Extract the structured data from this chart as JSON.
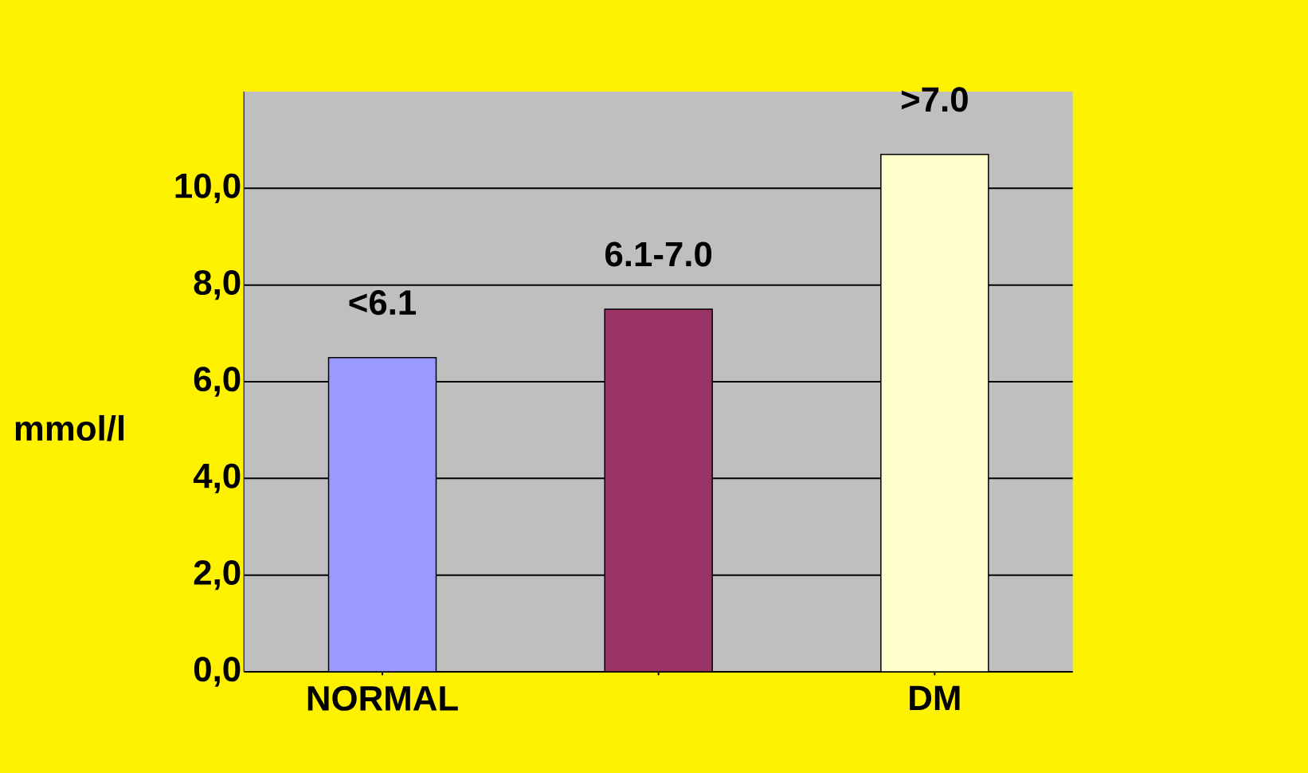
{
  "chart_data": {
    "type": "bar",
    "ylabel": "mmol/l",
    "categories": [
      "NORMAL",
      null,
      "DM"
    ],
    "values": [
      6.5,
      7.5,
      10.7
    ],
    "colors": [
      "#9999ff",
      "#993366",
      "#ffffcc"
    ],
    "ylim": [
      0,
      12
    ],
    "yticks": [
      {
        "value": 0,
        "label": "0,0"
      },
      {
        "value": 2,
        "label": "2,0"
      },
      {
        "value": 4,
        "label": "4,0"
      },
      {
        "value": 6,
        "label": "6,0"
      },
      {
        "value": 8,
        "label": "8,0"
      },
      {
        "value": 10,
        "label": "10,0"
      }
    ],
    "grid": "y",
    "annotations": [
      "<6.1",
      "6.1-7.0",
      ">7.0"
    ]
  }
}
